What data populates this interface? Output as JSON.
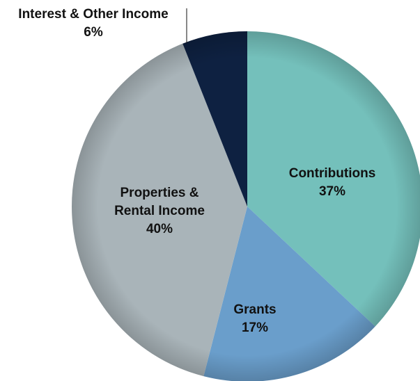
{
  "chart_data": {
    "type": "pie",
    "slices": [
      {
        "label_lines": [
          "Contributions"
        ],
        "value_label": "37%",
        "value": 37,
        "color": "#74c0bb"
      },
      {
        "label_lines": [
          "Grants"
        ],
        "value_label": "17%",
        "value": 17,
        "color": "#6a9ecb"
      },
      {
        "label_lines": [
          "Properties &",
          "Rental Income"
        ],
        "value_label": "40%",
        "value": 40,
        "color": "#a9b4b9"
      },
      {
        "label_lines": [
          "Interest & Other Income"
        ],
        "value_label": "6%",
        "value": 6,
        "color": "#0e2141"
      }
    ],
    "start_angle_deg": 0,
    "direction": "clockwise"
  }
}
